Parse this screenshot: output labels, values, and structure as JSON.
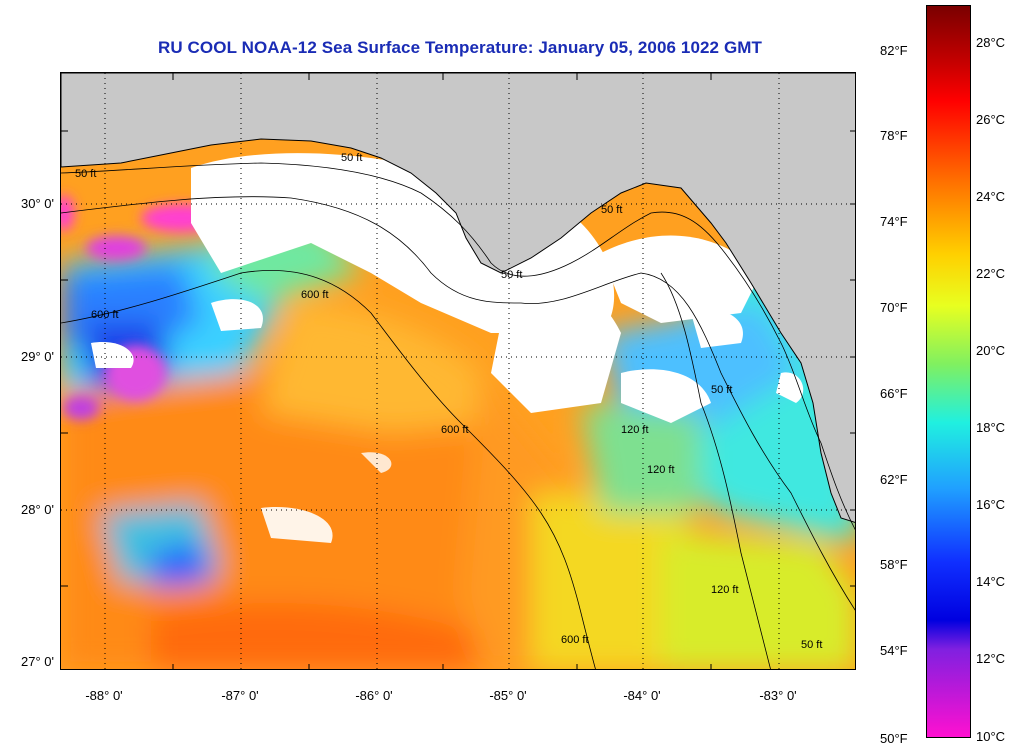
{
  "title": "RU COOL  NOAA-12  Sea Surface Temperature:  January 05, 2006 1022 GMT",
  "map": {
    "lat_labels": [
      "30° 0'",
      "29° 0'",
      "28° 0'",
      "27° 0'"
    ],
    "lon_labels": [
      "-88° 0'",
      "-87° 0'",
      "-86° 0'",
      "-85° 0'",
      "-84° 0'",
      "-83° 0'"
    ],
    "contour_labels": [
      "50 ft",
      "120 ft",
      "600 ft"
    ],
    "land_color": "#c8c8c8",
    "cloud_color": "#ffffff"
  },
  "colorbar": {
    "fahrenheit_labels": [
      "82°F",
      "78°F",
      "74°F",
      "70°F",
      "66°F",
      "62°F",
      "58°F",
      "54°F",
      "50°F"
    ],
    "celsius_labels": [
      "28°C",
      "26°C",
      "24°C",
      "22°C",
      "20°C",
      "18°C",
      "16°C",
      "14°C",
      "12°C",
      "10°C"
    ]
  }
}
